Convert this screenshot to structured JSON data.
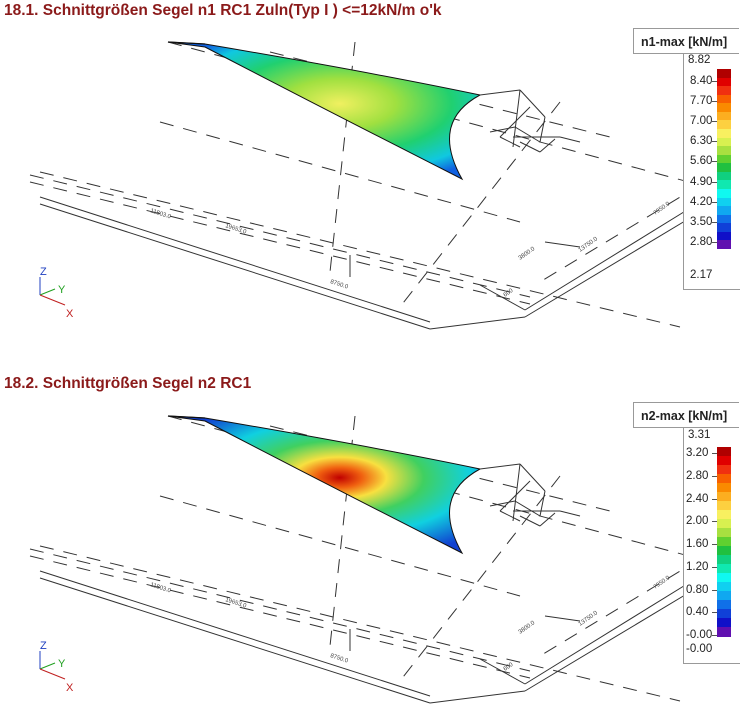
{
  "sections": [
    {
      "title": "18.1. Schnittgrößen Segel n1 RC1 Zuln(Typ I ) <=12kN/m o'k",
      "legend": {
        "title": "n1-max [kN/m]",
        "max": "8.82",
        "min": "2.17",
        "ticks": [
          "8.40",
          "7.70",
          "7.00",
          "6.30",
          "5.60",
          "4.90",
          "4.20",
          "3.50",
          "2.80"
        ]
      },
      "hotspot_color": "#f0f060",
      "dimensions": [
        "11803.0",
        "19653.0",
        "8750.0",
        "3800.0",
        "13750.0",
        "7950.0",
        "600"
      ],
      "axes": {
        "z": "Z",
        "y": "Y",
        "x": "X"
      }
    },
    {
      "title": "18.2. Schnittgrößen Segel n2 RC1",
      "legend": {
        "title": "n2-max [kN/m]",
        "max": "3.31",
        "min": "-0.00",
        "ticks": [
          "3.20",
          "2.80",
          "2.40",
          "2.00",
          "1.60",
          "1.20",
          "0.80",
          "0.40",
          "-0.00"
        ]
      },
      "hotspot_color": "#d01010",
      "dimensions": [
        "11803.0",
        "19653.0",
        "8750.0",
        "3800.0",
        "13750.0",
        "7950.0",
        "600"
      ],
      "axes": {
        "z": "Z",
        "y": "Y",
        "x": "X"
      }
    }
  ],
  "colorscale": [
    "#b00000",
    "#e00000",
    "#f03010",
    "#f86000",
    "#fa8a00",
    "#fcae20",
    "#fdd040",
    "#f8f060",
    "#d8f050",
    "#a8e040",
    "#60d030",
    "#20c040",
    "#10d080",
    "#10e8b0",
    "#10f8f0",
    "#10d0f0",
    "#10a8f0",
    "#1070e8",
    "#1040d8",
    "#1010c8",
    "#6010b0"
  ]
}
